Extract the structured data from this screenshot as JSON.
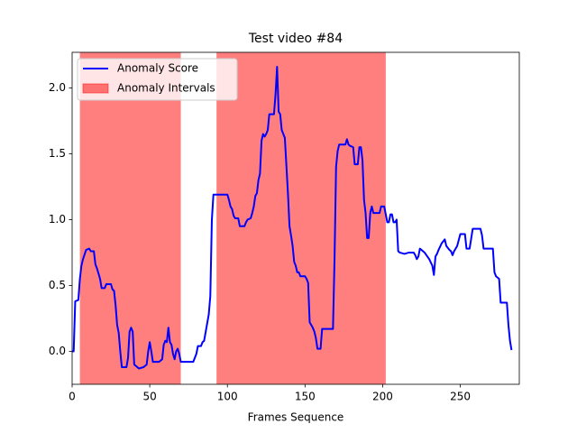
{
  "chart_data": {
    "type": "line",
    "title": "Test video #84",
    "x_label": "Frames Sequence",
    "xlim": [
      0,
      288
    ],
    "ylim": [
      -0.25,
      2.27
    ],
    "xticks": [
      0,
      50,
      100,
      150,
      200,
      250
    ],
    "yticks": [
      {
        "value": 0,
        "label": "0.0"
      },
      {
        "value": 0.5,
        "label": "0.5"
      },
      {
        "value": 1,
        "label": "1.0"
      },
      {
        "value": 1.5,
        "label": "1.5"
      },
      {
        "value": 2,
        "label": "2.0"
      }
    ],
    "legend": "upper left",
    "series": [
      {
        "name": "Anomaly Score",
        "color": "#0000ff",
        "x": [
          0,
          1,
          2,
          4,
          5,
          6,
          7,
          9,
          11,
          12,
          14,
          15,
          16,
          18,
          19,
          21,
          22,
          25,
          26,
          27,
          28,
          29,
          30,
          31,
          32,
          35,
          36,
          37,
          38,
          39,
          40,
          42,
          43,
          46,
          48,
          49,
          50,
          51,
          52,
          56,
          58,
          59,
          60,
          61,
          62,
          63,
          64,
          65,
          66,
          67,
          68,
          69,
          70,
          78,
          79,
          80,
          81,
          83,
          84,
          85,
          88,
          89,
          90,
          91,
          100,
          101,
          102,
          103,
          104,
          105,
          107,
          108,
          111,
          112,
          113,
          115,
          116,
          117,
          118,
          119,
          120,
          121,
          122,
          123,
          124,
          125,
          126,
          127,
          130,
          131,
          132,
          133,
          134,
          135,
          136,
          137,
          139,
          140,
          141,
          142,
          143,
          144,
          145,
          146,
          147,
          150,
          151,
          152,
          153,
          154,
          155,
          156,
          157,
          158,
          160,
          161,
          168,
          169,
          170,
          171,
          172,
          176,
          177,
          178,
          179,
          181,
          182,
          184,
          185,
          186,
          187,
          188,
          189,
          190,
          191,
          192,
          193,
          194,
          198,
          199,
          201,
          202,
          203,
          204,
          205,
          206,
          207,
          208,
          209,
          210,
          211,
          214,
          217,
          220,
          221,
          222,
          223,
          224,
          225,
          227,
          230,
          232,
          233,
          234,
          235,
          236,
          238,
          240,
          241,
          243,
          244,
          245,
          246,
          247,
          248,
          250,
          253,
          254,
          256,
          258,
          263,
          264,
          265,
          271,
          272,
          273,
          275,
          276,
          280,
          281,
          282,
          283
        ],
        "values": [
          0,
          0,
          0.38,
          0.39,
          0.55,
          0.65,
          0.7,
          0.77,
          0.78,
          0.76,
          0.76,
          0.66,
          0.63,
          0.55,
          0.48,
          0.48,
          0.51,
          0.51,
          0.47,
          0.46,
          0.35,
          0.2,
          0.14,
          0.0,
          -0.12,
          -0.12,
          -0.05,
          0.15,
          0.18,
          0.15,
          -0.1,
          -0.12,
          -0.13,
          -0.12,
          -0.1,
          0.0,
          0.07,
          0.0,
          -0.08,
          -0.08,
          -0.06,
          0.05,
          0.08,
          0.07,
          0.18,
          0.07,
          0.05,
          -0.02,
          -0.06,
          0.0,
          0.02,
          -0.02,
          -0.08,
          -0.08,
          -0.05,
          -0.02,
          0.04,
          0.04,
          0.07,
          0.08,
          0.28,
          0.42,
          1.0,
          1.19,
          1.19,
          1.15,
          1.1,
          1.08,
          1.03,
          1.01,
          1.01,
          0.95,
          0.95,
          0.98,
          1.0,
          1.01,
          1.05,
          1.1,
          1.18,
          1.2,
          1.3,
          1.35,
          1.6,
          1.65,
          1.63,
          1.65,
          1.68,
          1.8,
          1.8,
          1.95,
          2.16,
          1.82,
          1.8,
          1.68,
          1.65,
          1.62,
          1.2,
          0.95,
          0.88,
          0.8,
          0.68,
          0.65,
          0.6,
          0.6,
          0.57,
          0.57,
          0.55,
          0.52,
          0.22,
          0.2,
          0.18,
          0.15,
          0.1,
          0.02,
          0.02,
          0.17,
          0.17,
          0.7,
          1.4,
          1.52,
          1.57,
          1.57,
          1.61,
          1.57,
          1.56,
          1.55,
          1.42,
          1.42,
          1.55,
          1.55,
          1.45,
          1.15,
          1.05,
          0.86,
          0.86,
          1.05,
          1.1,
          1.05,
          1.05,
          1.1,
          1.1,
          1.04,
          0.98,
          0.98,
          1.04,
          1.04,
          0.98,
          0.98,
          1.0,
          0.76,
          0.75,
          0.74,
          0.75,
          0.75,
          0.73,
          0.7,
          0.72,
          0.78,
          0.77,
          0.75,
          0.7,
          0.65,
          0.58,
          0.72,
          0.74,
          0.77,
          0.82,
          0.85,
          0.8,
          0.77,
          0.76,
          0.73,
          0.76,
          0.78,
          0.8,
          0.89,
          0.89,
          0.78,
          0.78,
          0.93,
          0.93,
          0.88,
          0.78,
          0.78,
          0.6,
          0.57,
          0.55,
          0.37,
          0.37,
          0.2,
          0.08,
          0.01
        ]
      }
    ],
    "intervals": {
      "name": "Anomaly Intervals",
      "color": "#ff0000",
      "ranges": [
        [
          5,
          70
        ],
        [
          93,
          202
        ]
      ]
    }
  }
}
